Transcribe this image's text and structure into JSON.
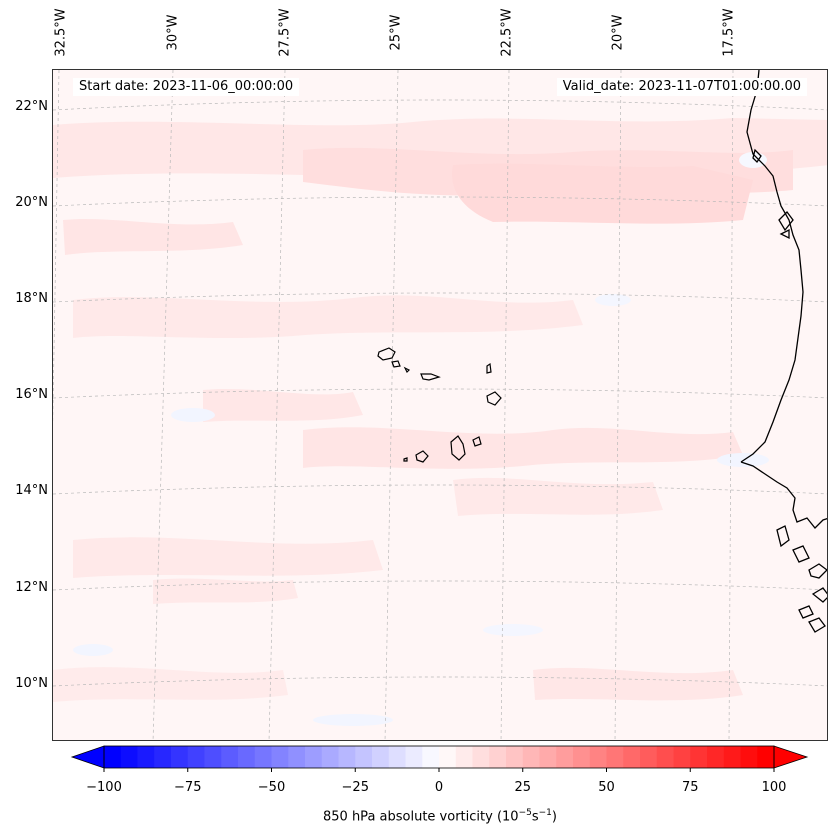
{
  "map": {
    "title_start": "Start date: 2023-11-06_00:00:00",
    "title_valid": "Valid_date: 2023-11-07T01:00:00.00",
    "longitude_labels": [
      "32.5°W",
      "30°W",
      "27.5°W",
      "25°W",
      "22.5°W",
      "20°W",
      "17.5°W"
    ],
    "latitude_labels": [
      "22°N",
      "20°N",
      "18°N",
      "16°N",
      "14°N",
      "12°N",
      "10°N"
    ],
    "field": "850 hPa absolute vorticity",
    "colors": {
      "positive_max": "#ff0000",
      "negative_max": "#0000ff",
      "background": "#fff6f6",
      "light_pink": "#ffe4e4",
      "light_blue": "#f3f6ff",
      "coastline": "#000000",
      "gridline": "#b0b0b0"
    },
    "features": [
      "cape-verde-islands",
      "west-africa-coastline"
    ]
  },
  "colorbar": {
    "min": -100,
    "max": 100,
    "levels": 41,
    "ticks": [
      "−100",
      "−75",
      "−50",
      "−25",
      "0",
      "25",
      "50",
      "75",
      "100"
    ],
    "tick_values": [
      -100,
      -75,
      -50,
      -25,
      0,
      25,
      50,
      75,
      100
    ],
    "label": "850 hPa absolute vorticity (10",
    "label_exp1": "−5",
    "label_mid": "s",
    "label_exp2": "−1",
    "label_end": ")"
  }
}
